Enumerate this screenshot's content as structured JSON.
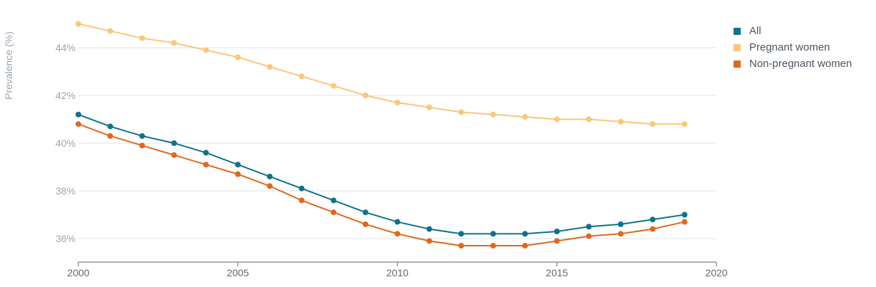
{
  "chart_data": {
    "type": "line",
    "title": "",
    "xlabel": "",
    "ylabel": "Prevalence (%)",
    "x": [
      2000,
      2001,
      2002,
      2003,
      2004,
      2005,
      2006,
      2007,
      2008,
      2009,
      2010,
      2011,
      2012,
      2013,
      2014,
      2015,
      2016,
      2017,
      2018,
      2019
    ],
    "xlim": [
      2000,
      2020
    ],
    "ylim": [
      35,
      45.2
    ],
    "x_ticks": [
      "2000",
      "2005",
      "2010",
      "2015",
      "2020"
    ],
    "y_ticks": [
      "36%",
      "38%",
      "40%",
      "42%",
      "44%"
    ],
    "grid": true,
    "legend_position": "top-right",
    "series": [
      {
        "name": "All",
        "color": "#0f7289",
        "values": [
          41.2,
          40.7,
          40.3,
          40.0,
          39.6,
          39.1,
          38.6,
          38.1,
          37.6,
          37.1,
          36.7,
          36.4,
          36.2,
          36.2,
          36.2,
          36.3,
          36.5,
          36.6,
          36.8,
          37.0
        ]
      },
      {
        "name": "Pregnant women",
        "color": "#f9c77a",
        "values": [
          45.0,
          44.7,
          44.4,
          44.2,
          43.9,
          43.6,
          43.2,
          42.8,
          42.4,
          42.0,
          41.7,
          41.5,
          41.3,
          41.2,
          41.1,
          41.0,
          41.0,
          40.9,
          40.8,
          40.8
        ]
      },
      {
        "name": "Non-pregnant women",
        "color": "#e0681e",
        "values": [
          40.8,
          40.3,
          39.9,
          39.5,
          39.1,
          38.7,
          38.2,
          37.6,
          37.1,
          36.6,
          36.2,
          35.9,
          35.7,
          35.7,
          35.7,
          35.9,
          36.1,
          36.2,
          36.4,
          36.7
        ]
      }
    ]
  }
}
